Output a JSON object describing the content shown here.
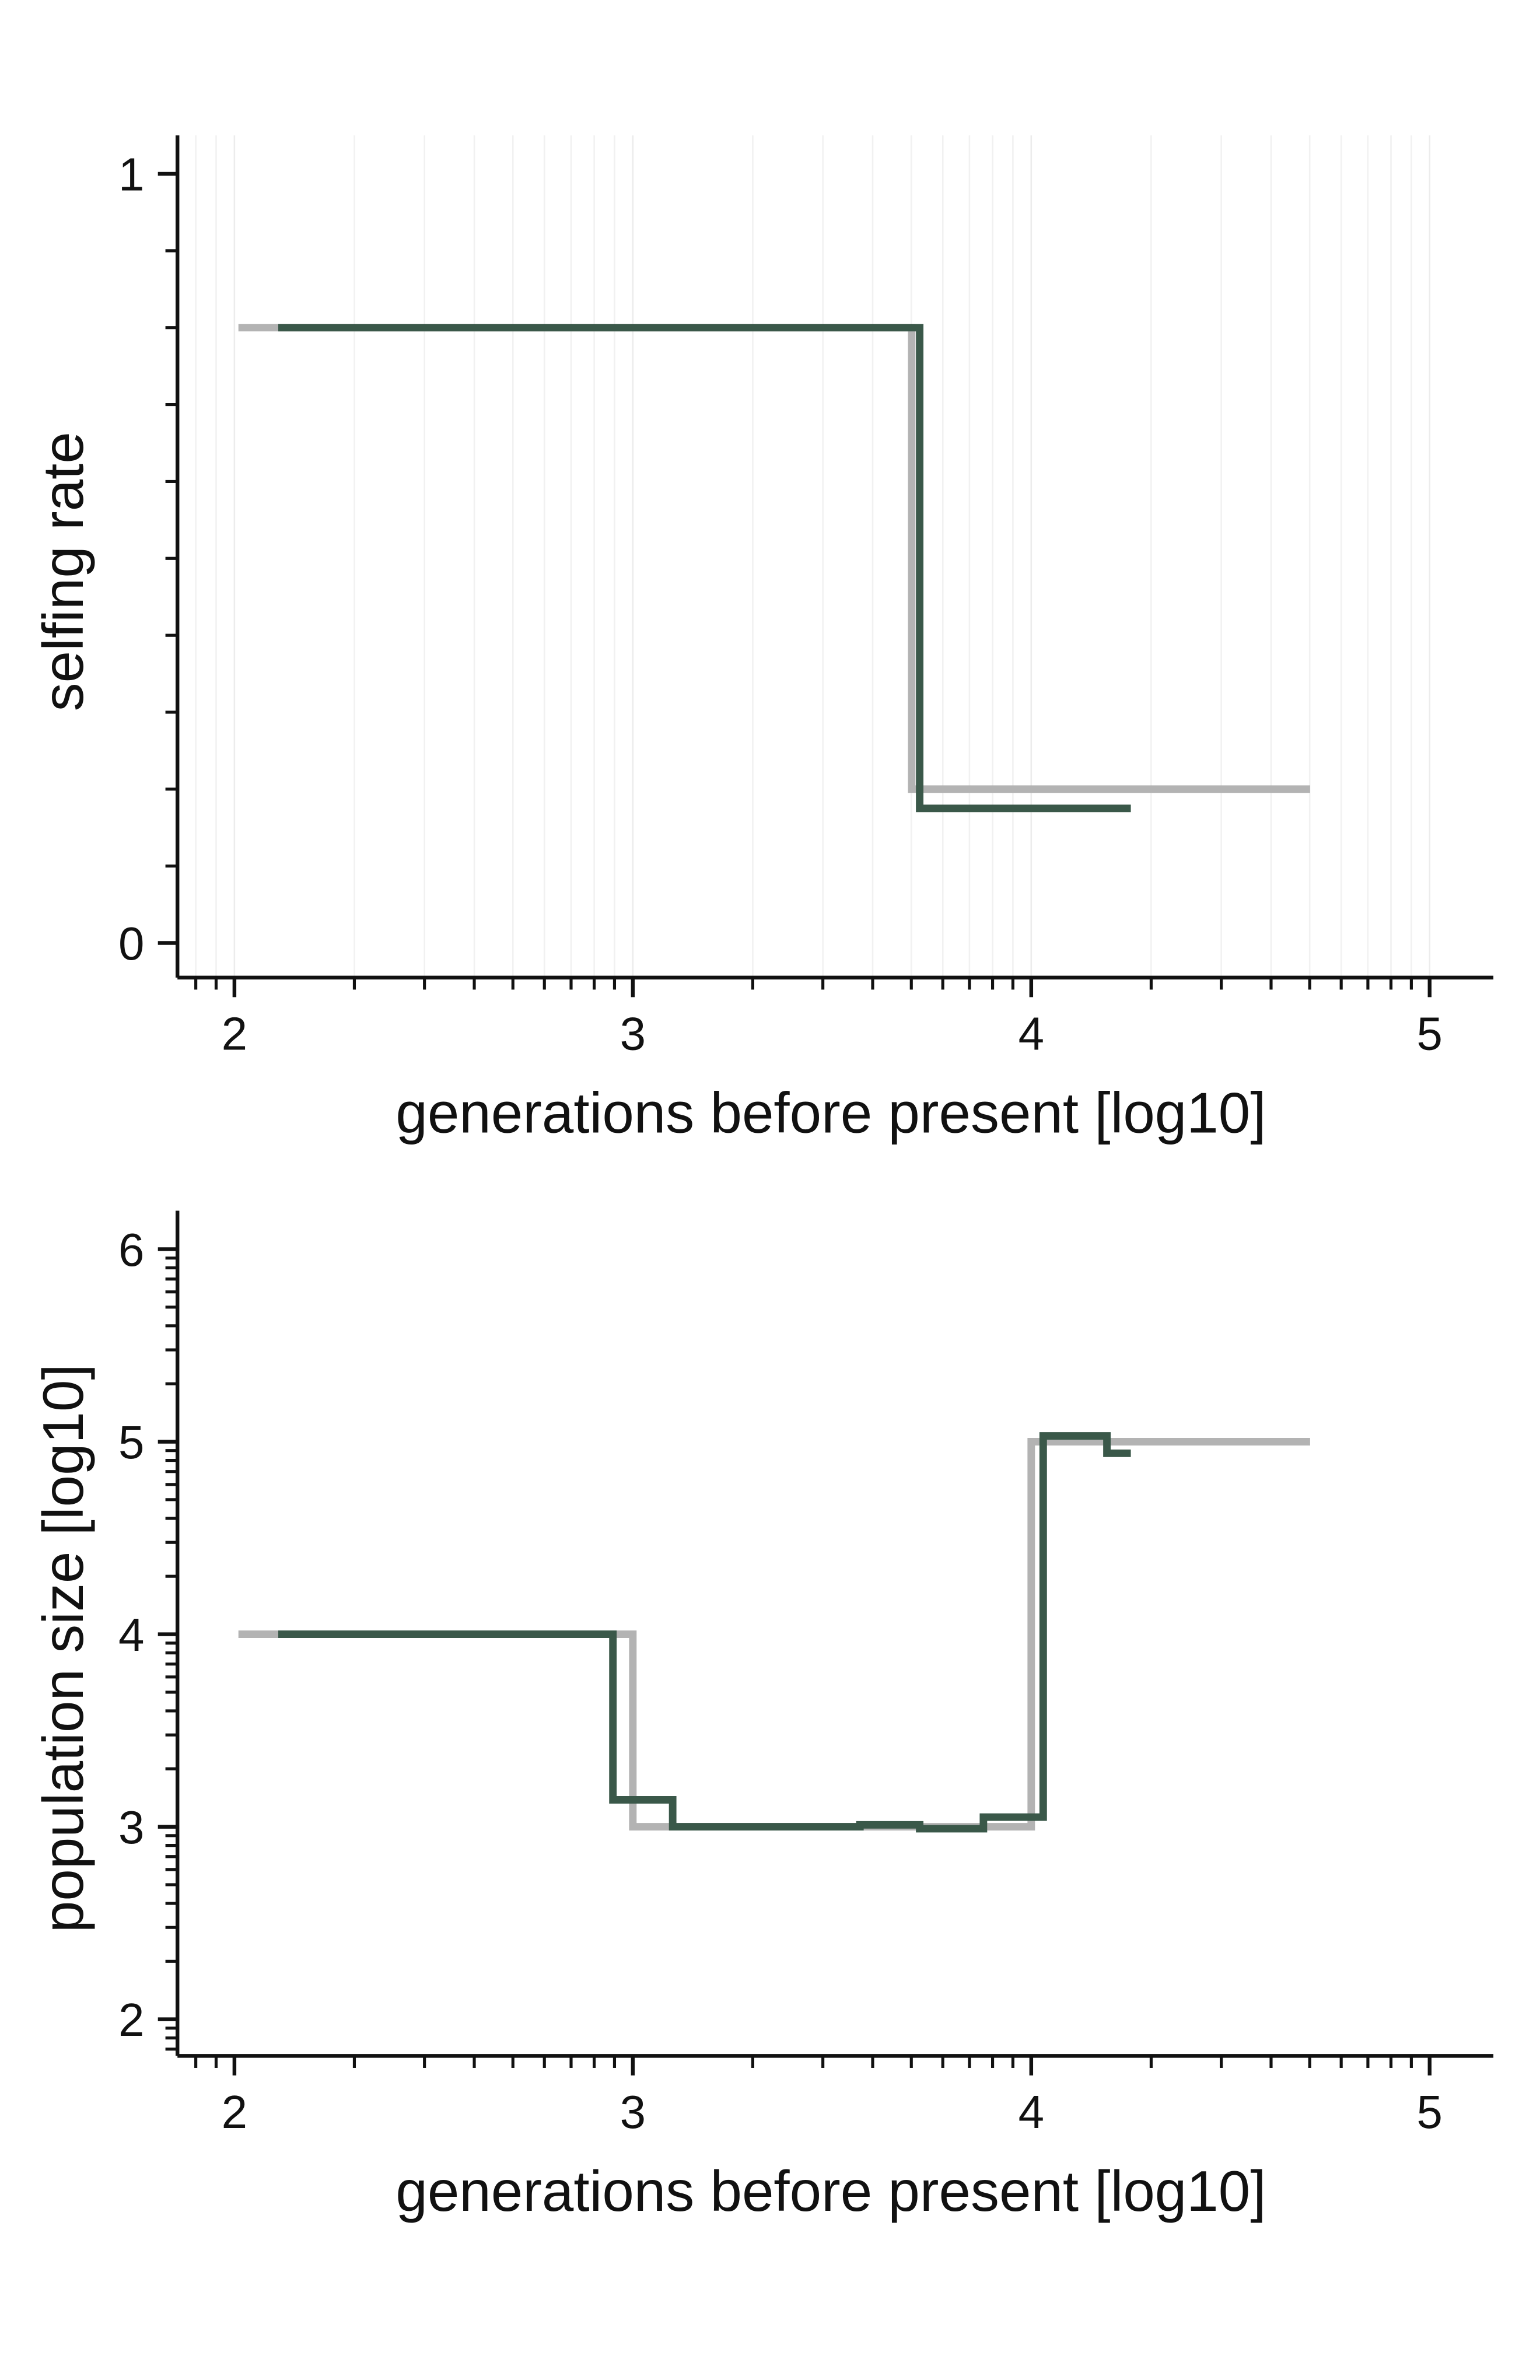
{
  "chart_data": [
    {
      "type": "line",
      "xlabel": "generations before present [log10]",
      "ylabel": "selfing rate",
      "xlim": [
        1.857,
        5.16
      ],
      "xticks": [
        2,
        3,
        4,
        5
      ],
      "xminorticks": [
        1.903,
        1.954,
        2.301,
        2.477,
        2.602,
        2.699,
        2.778,
        2.845,
        2.903,
        2.954,
        3.301,
        3.477,
        3.602,
        3.699,
        3.778,
        3.845,
        3.903,
        3.954,
        4.301,
        4.477,
        4.602,
        4.699,
        4.778,
        4.845,
        4.903,
        4.954
      ],
      "ylim": [
        -0.045,
        1.05
      ],
      "yticks": [
        0,
        1
      ],
      "yminorticks": [
        0.1,
        0.2,
        0.3,
        0.4,
        0.5,
        0.6,
        0.7,
        0.8,
        0.9
      ],
      "grid": true,
      "series": [
        {
          "color": "#b3b3b3",
          "x": [
            2.01,
            3.7,
            3.7,
            4.7
          ],
          "values": [
            0.8,
            0.8,
            0.2,
            0.2
          ]
        },
        {
          "color": "#3a5849",
          "x": [
            2.11,
            3.72,
            3.72,
            4.25
          ],
          "values": [
            0.8,
            0.8,
            0.175,
            0.175
          ]
        }
      ]
    },
    {
      "type": "line",
      "xlabel": "generations before present [log10]",
      "ylabel": "population size [log10]",
      "xlim": [
        1.857,
        5.16
      ],
      "xticks": [
        2,
        3,
        4,
        5
      ],
      "xminorticks": [
        1.903,
        1.954,
        2.301,
        2.477,
        2.602,
        2.699,
        2.778,
        2.845,
        2.903,
        2.954,
        3.301,
        3.477,
        3.602,
        3.699,
        3.778,
        3.845,
        3.903,
        3.954,
        4.301,
        4.477,
        4.602,
        4.699,
        4.778,
        4.845,
        4.903,
        4.954
      ],
      "ylim": [
        1.81,
        6.2
      ],
      "yticks": [
        2,
        3,
        4,
        5,
        6
      ],
      "yminorticks": [
        1.845,
        1.903,
        1.954,
        2.301,
        2.477,
        2.602,
        2.699,
        2.778,
        2.845,
        2.903,
        2.954,
        3.301,
        3.477,
        3.602,
        3.699,
        3.778,
        3.845,
        3.903,
        3.954,
        4.301,
        4.477,
        4.602,
        4.699,
        4.778,
        4.845,
        4.903,
        4.954,
        5.301,
        5.477,
        5.602,
        5.699,
        5.778,
        5.845,
        5.903,
        5.954
      ],
      "grid": false,
      "series": [
        {
          "color": "#b3b3b3",
          "x": [
            2.01,
            3.0,
            3.0,
            4.0,
            4.0,
            4.7
          ],
          "values": [
            4,
            4,
            3,
            3,
            5,
            5
          ]
        },
        {
          "color": "#3a5849",
          "x": [
            2.11,
            2.95,
            2.95,
            3.1,
            3.1,
            3.57,
            3.57,
            3.72,
            3.72,
            3.88,
            3.88,
            4.03,
            4.03,
            4.19,
            4.19,
            4.25
          ],
          "values": [
            4.0,
            4.0,
            3.14,
            3.14,
            3.0,
            3.0,
            3.01,
            3.01,
            2.99,
            2.99,
            3.05,
            3.05,
            5.03,
            5.03,
            4.94,
            4.94
          ]
        }
      ]
    }
  ]
}
